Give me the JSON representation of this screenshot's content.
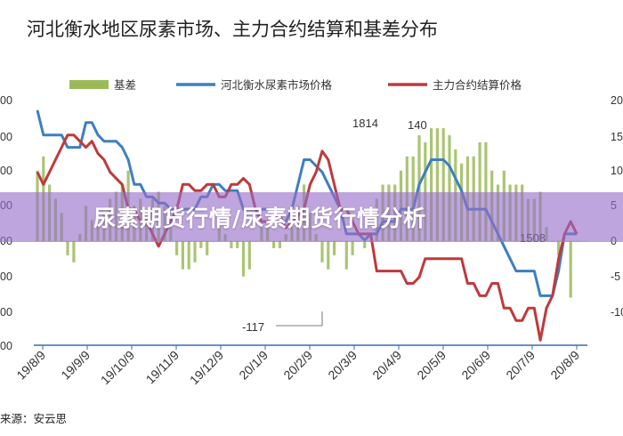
{
  "colors": {
    "basis": "#9bbb59",
    "spot": "#3d7fc1",
    "futures": "#c0393b",
    "axis": "#3b6db0",
    "banner": "#9a6ed0"
  },
  "chart_data": {
    "type": "bar+line",
    "title": "河北衡水地区尿素市场、主力合约结算和基差分布",
    "legend": [
      "基差",
      "河北衡水尿素市场价格",
      "主力合约结算价格"
    ],
    "legend_position": "top",
    "left_axis_ticks": [
      "00",
      "00",
      "00",
      "00",
      "00",
      "00",
      "00",
      "00"
    ],
    "right_axis_ticks": [
      "20",
      "15",
      "10",
      "5",
      "0",
      "-5",
      "-10"
    ],
    "x_tick_labels": [
      "19/8/9",
      "19/9/9",
      "19/10/9",
      "19/11/9",
      "19/12/9",
      "20/1/9",
      "20/2/9",
      "20/3/9",
      "20/4/9",
      "20/5/9",
      "20/6/9",
      "20/7/9",
      "20/8/9"
    ],
    "annotations": [
      "1814",
      "140",
      "-117",
      "1508"
    ],
    "series": [
      {
        "name": "河北衡水尿素市场价格",
        "kind": "line",
        "y": [
          1880,
          1840,
          1840,
          1840,
          1840,
          1820,
          1820,
          1820,
          1860,
          1860,
          1840,
          1830,
          1830,
          1830,
          1820,
          1800,
          1760,
          1760,
          1740,
          1740,
          1730,
          1730,
          1720,
          1720,
          1720,
          1720,
          1720,
          1740,
          1740,
          1760,
          1760,
          1750,
          1750,
          1750,
          1720,
          1720,
          1720,
          1720,
          1720,
          1700,
          1700,
          1700,
          1720,
          1760,
          1800,
          1800,
          1790,
          1780,
          1760,
          1740,
          1720,
          1680,
          1680,
          1680,
          1670,
          1680,
          1680,
          1700,
          1700,
          1700,
          1720,
          1720,
          1720,
          1760,
          1780,
          1800,
          1800,
          1800,
          1790,
          1770,
          1750,
          1720,
          1720,
          1720,
          1720,
          1700,
          1680,
          1660,
          1640,
          1620,
          1620,
          1620,
          1620,
          1580,
          1580,
          1580,
          1620,
          1680,
          1680,
          1680
        ]
      },
      {
        "name": "主力合约结算价格",
        "kind": "line",
        "y": [
          1780,
          1760,
          1780,
          1800,
          1820,
          1840,
          1840,
          1830,
          1820,
          1830,
          1810,
          1800,
          1780,
          1770,
          1760,
          1720,
          1720,
          1700,
          1700,
          1680,
          1660,
          1680,
          1700,
          1720,
          1760,
          1760,
          1750,
          1750,
          1760,
          1760,
          1740,
          1740,
          1760,
          1760,
          1770,
          1760,
          1720,
          1700,
          1700,
          1710,
          1710,
          1690,
          1700,
          1710,
          1720,
          1760,
          1780,
          1814,
          1800,
          1760,
          1720,
          1720,
          1700,
          1680,
          1680,
          1680,
          1620,
          1620,
          1620,
          1620,
          1620,
          1600,
          1600,
          1610,
          1640,
          1640,
          1640,
          1640,
          1640,
          1640,
          1640,
          1600,
          1600,
          1580,
          1580,
          1600,
          1600,
          1560,
          1560,
          1540,
          1540,
          1560,
          1560,
          1508,
          1560,
          1580,
          1640,
          1680,
          1700,
          1680
        ]
      },
      {
        "name": "基差",
        "kind": "bar",
        "axis": "right",
        "y": [
          10,
          12,
          8,
          6,
          4,
          -2,
          -3,
          1,
          5,
          3,
          2,
          4,
          6,
          7,
          8,
          10,
          5,
          6,
          4,
          6,
          7,
          5,
          2,
          -2,
          -4,
          -4,
          -3,
          -1,
          -2,
          0,
          2,
          1,
          -1,
          -1,
          -5,
          -4,
          0,
          2,
          2,
          -1,
          -1,
          1,
          2,
          5,
          8,
          4,
          1,
          -3,
          -4,
          -2,
          0,
          -4,
          -2,
          0,
          -1,
          0,
          6,
          8,
          8,
          8,
          10,
          12,
          12,
          15,
          14,
          16,
          16,
          16,
          15,
          13,
          11,
          12,
          12,
          14,
          14,
          10,
          8,
          10,
          8,
          8,
          8,
          6,
          6,
          7,
          2,
          0,
          -2,
          0,
          -8,
          0
        ]
      }
    ]
  },
  "source": "来源：安云思",
  "banner": {
    "text": "尿素期货行情/尿素期货行情分析"
  }
}
